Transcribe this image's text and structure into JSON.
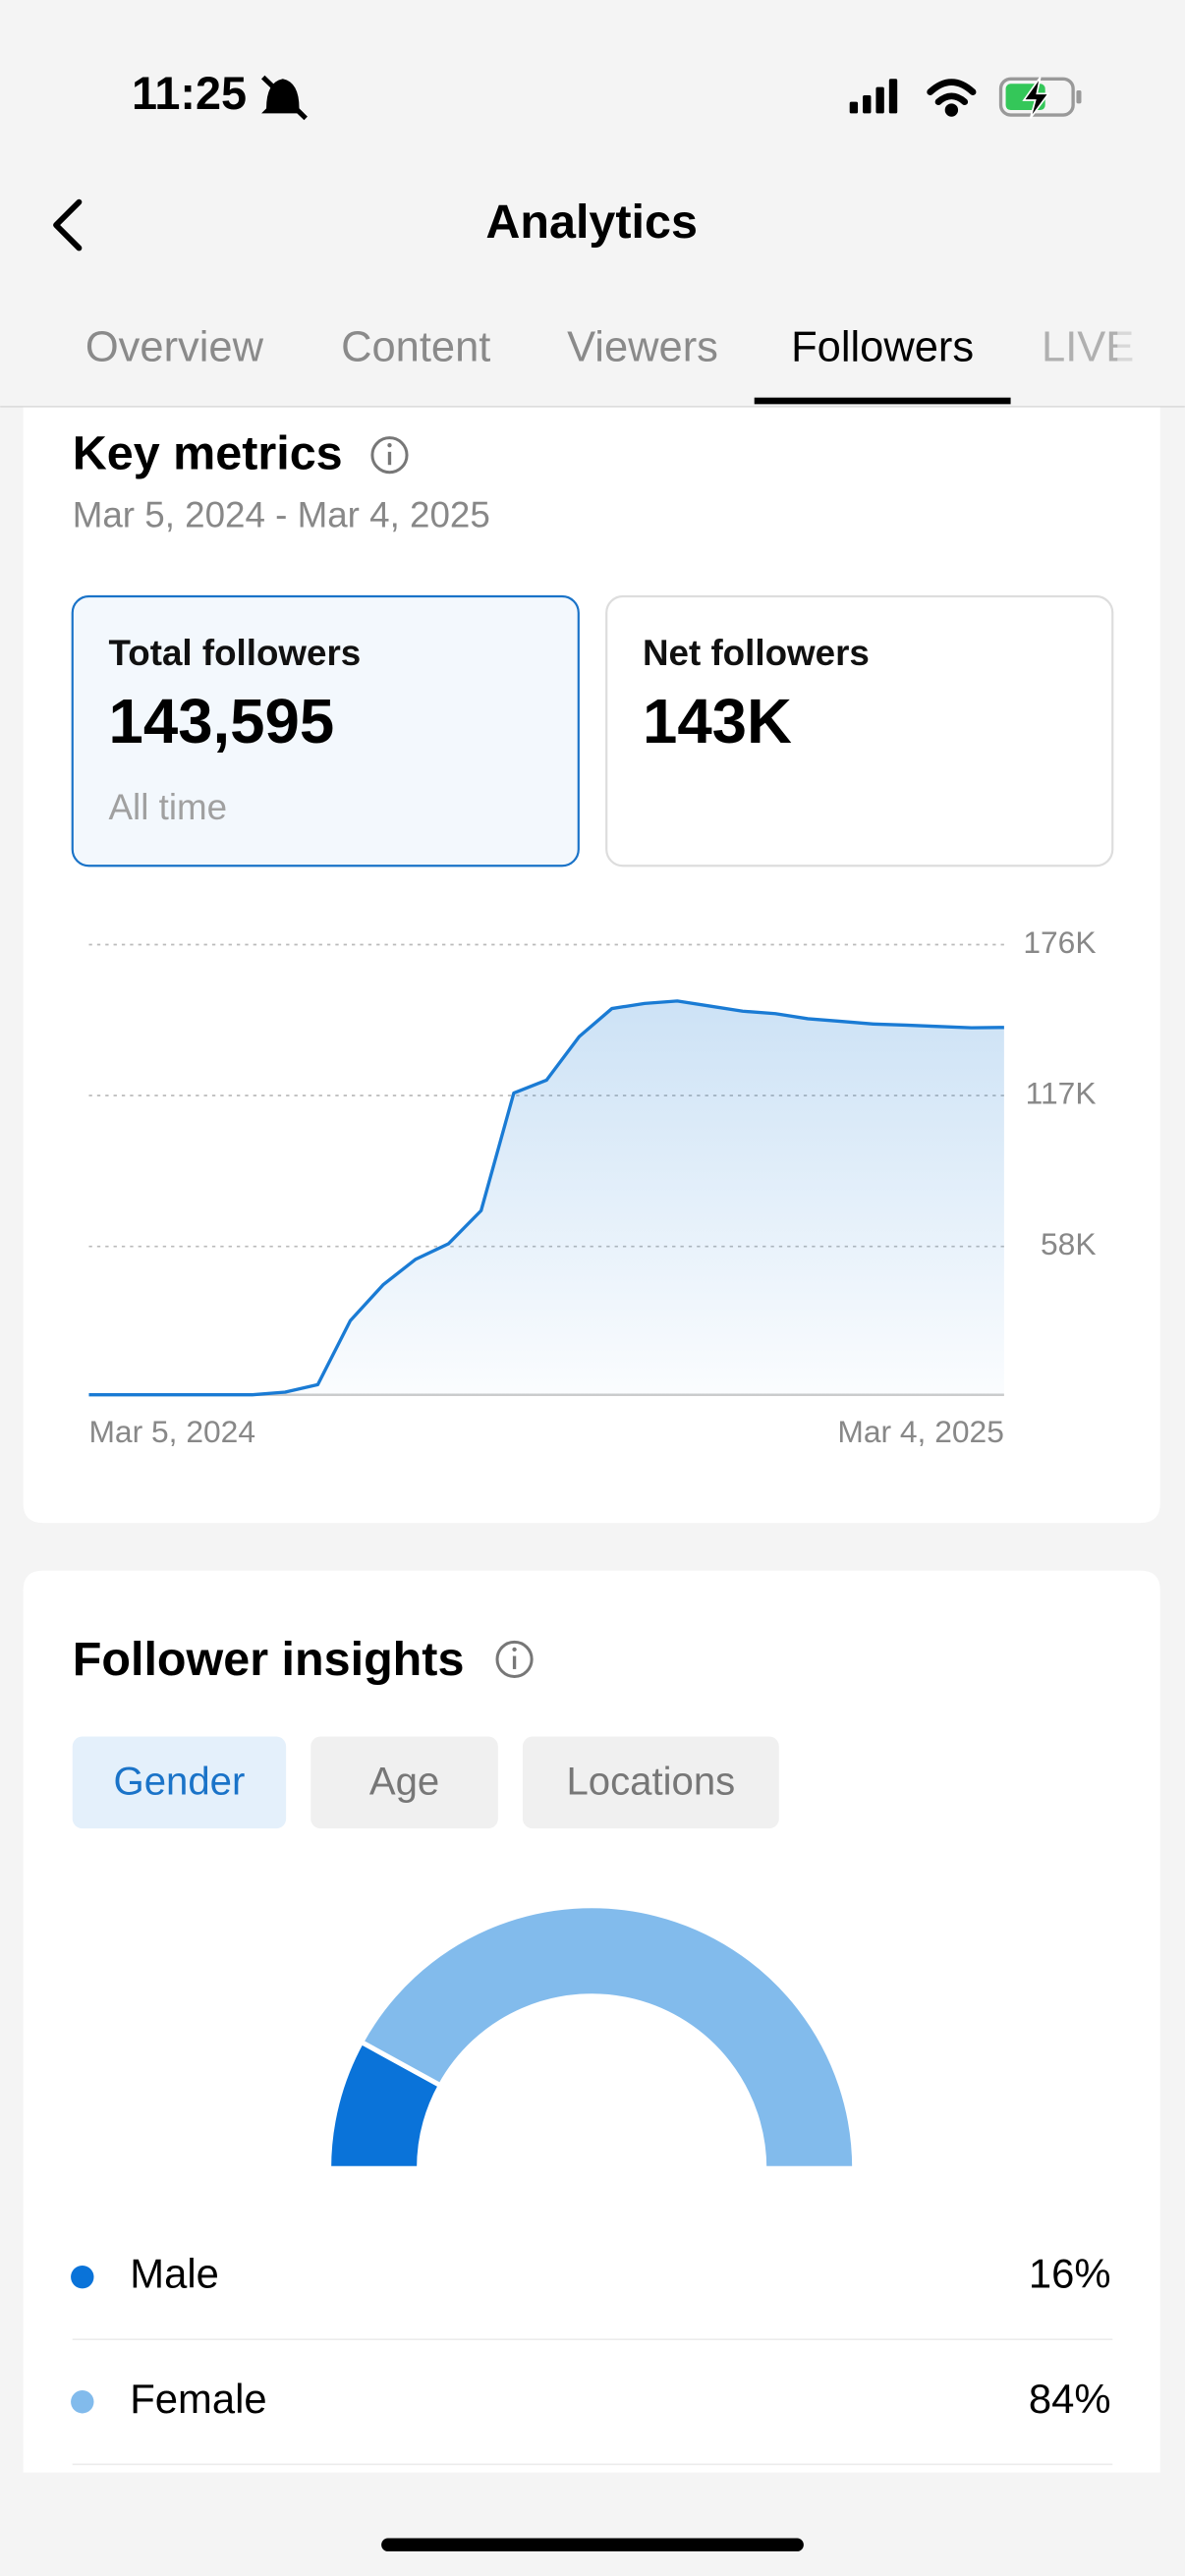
{
  "status_bar": {
    "time": "11:25"
  },
  "header": {
    "title": "Analytics"
  },
  "tabs": [
    "Overview",
    "Content",
    "Viewers",
    "Followers",
    "LIVE"
  ],
  "key_metrics": {
    "title": "Key metrics",
    "date_range": "Mar 5, 2024 - Mar 4, 2025",
    "cards": [
      {
        "label": "Total followers",
        "value": "143,595",
        "note": "All time"
      },
      {
        "label": "Net followers",
        "value": "143K"
      }
    ]
  },
  "follower_insights": {
    "title": "Follower insights",
    "filters": [
      "Gender",
      "Age",
      "Locations"
    ]
  },
  "chart_data": [
    {
      "type": "area",
      "categories": [
        "Mar 5, 2024",
        null,
        null,
        null,
        null,
        null,
        null,
        null,
        null,
        null,
        null,
        null,
        null,
        null,
        null,
        null,
        null,
        null,
        null,
        null,
        null,
        null,
        null,
        null,
        null,
        null,
        null,
        null,
        "Mar 4, 2025"
      ],
      "series": [
        {
          "color": "#1a7bd4",
          "values": [
            0,
            0,
            0,
            0,
            0,
            0,
            1000,
            4000,
            29000,
            43000,
            53000,
            59000,
            72000,
            118000,
            123000,
            140000,
            151000,
            153000,
            154000,
            152000,
            150000,
            149000,
            147000,
            146000,
            145000,
            144500,
            144000,
            143500,
            143595
          ]
        }
      ],
      "ylim": [
        0,
        176000
      ],
      "yticks": [
        {
          "value": 58000,
          "label": "58K"
        },
        {
          "value": 117000,
          "label": "117K"
        },
        {
          "value": 176000,
          "label": "176K"
        }
      ],
      "grid": true
    },
    {
      "type": "pie",
      "categories": [
        "Male",
        "Female"
      ],
      "values": [
        16,
        84
      ],
      "value_labels": [
        "16%",
        "84%"
      ],
      "colors": [
        "#0a73d9",
        "#82bbec"
      ]
    }
  ]
}
